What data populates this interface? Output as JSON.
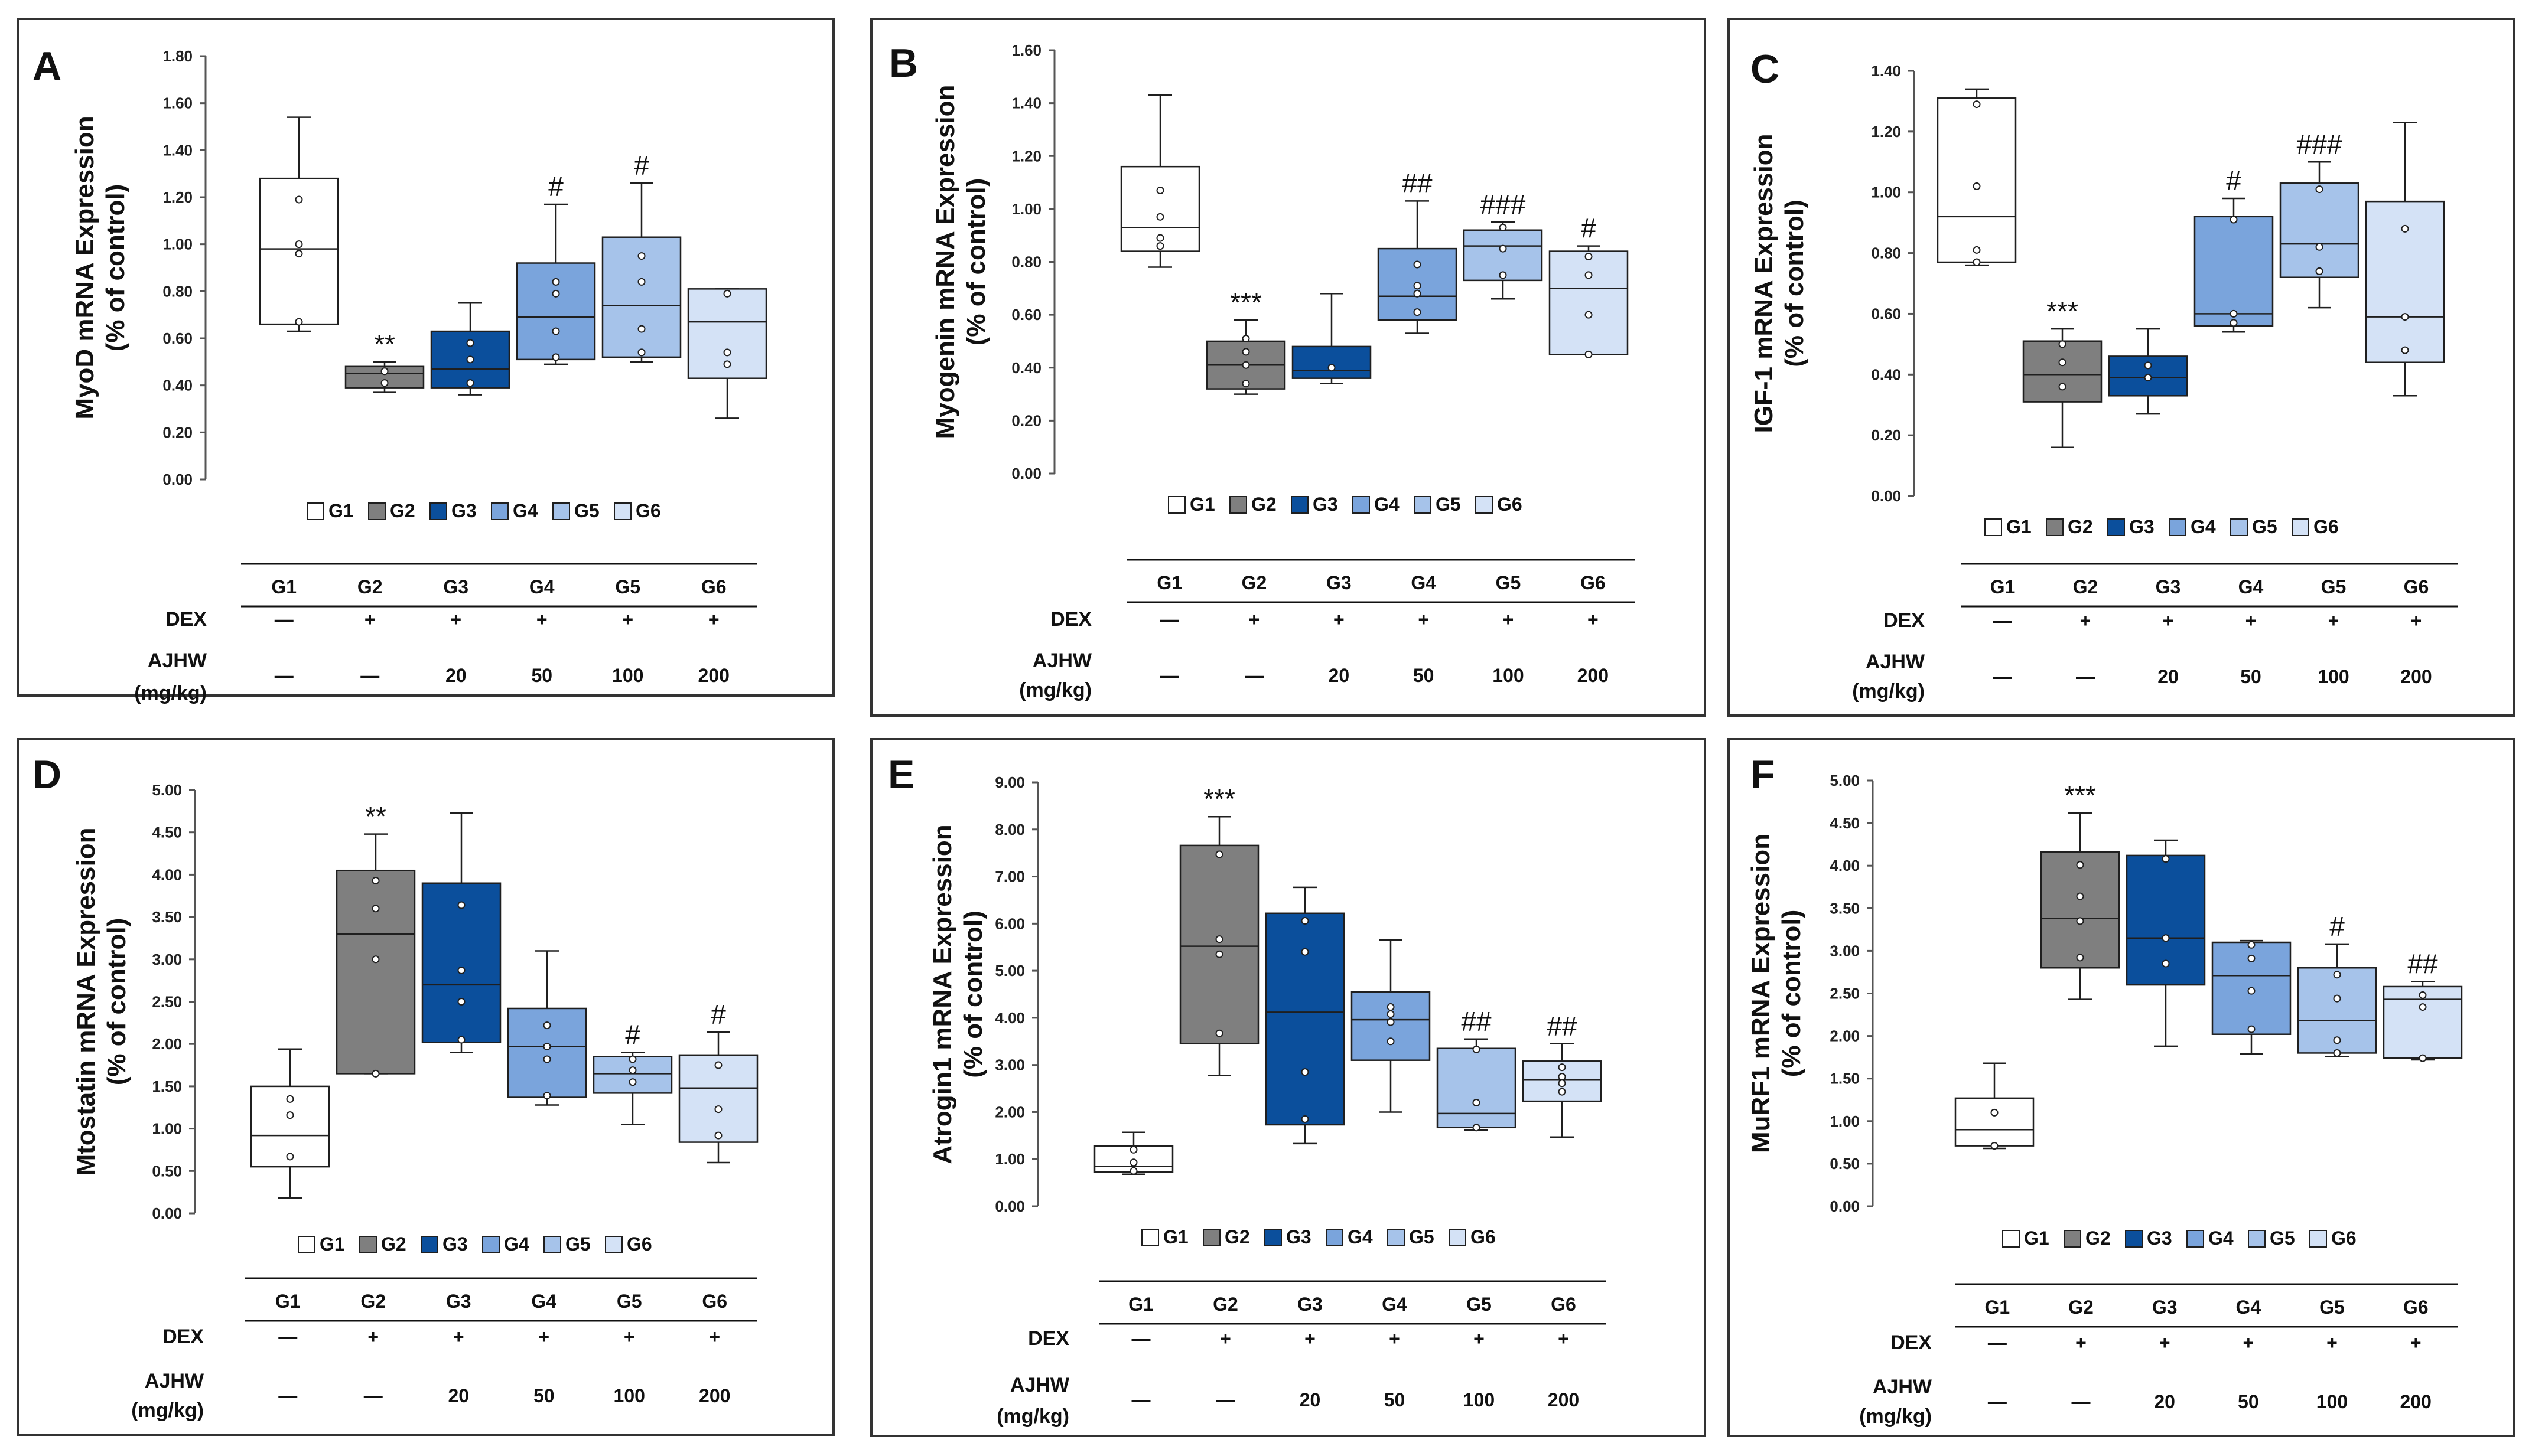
{
  "colors": {
    "G1": "#ffffff",
    "G2": "#7f7f7f",
    "G3": "#0b4f9c",
    "G4": "#7aa4dc",
    "G5": "#a6c3ea",
    "G6": "#d4e2f6",
    "stroke": "#1f1f1f"
  },
  "table": {
    "columns": [
      "G1",
      "G2",
      "G3",
      "G4",
      "G5",
      "G6"
    ],
    "dex_label": "DEX",
    "dex_values": [
      "—",
      "+",
      "+",
      "+",
      "+",
      "+"
    ],
    "ajhw_label_1": "AJHW",
    "ajhw_label_2": "(mg/kg)",
    "ajhw_values": [
      "—",
      "—",
      "20",
      "50",
      "100",
      "200"
    ]
  },
  "chart_data": [
    {
      "type": "box",
      "panel_label": "A",
      "ylabel_1": "MyoD mRNA Expression",
      "ylabel_2": "(% of control)",
      "ylim": [
        0,
        1.8
      ],
      "yticks": [
        "0.00",
        "0.20",
        "0.40",
        "0.60",
        "0.80",
        "1.00",
        "1.20",
        "1.40",
        "1.60",
        "1.80"
      ],
      "legend": [
        "G1",
        "G2",
        "G3",
        "G4",
        "G5",
        "G6"
      ],
      "groups": [
        {
          "name": "G1",
          "min": 0.63,
          "q1": 0.66,
          "median": 0.98,
          "q3": 1.28,
          "max": 1.54,
          "points": [
            0.67,
            0.96,
            1.0,
            1.19
          ],
          "sig": ""
        },
        {
          "name": "G2",
          "min": 0.37,
          "q1": 0.39,
          "median": 0.45,
          "q3": 0.48,
          "max": 0.5,
          "points": [
            0.41,
            0.46
          ],
          "sig": "**"
        },
        {
          "name": "G3",
          "min": 0.36,
          "q1": 0.39,
          "median": 0.47,
          "q3": 0.63,
          "max": 0.75,
          "points": [
            0.41,
            0.51,
            0.58
          ],
          "sig": ""
        },
        {
          "name": "G4",
          "min": 0.49,
          "q1": 0.51,
          "median": 0.69,
          "q3": 0.92,
          "max": 1.17,
          "points": [
            0.52,
            0.63,
            0.79,
            0.84
          ],
          "sig": "#"
        },
        {
          "name": "G5",
          "min": 0.5,
          "q1": 0.52,
          "median": 0.74,
          "q3": 1.03,
          "max": 1.26,
          "points": [
            0.54,
            0.64,
            0.84,
            0.95
          ],
          "sig": "#"
        },
        {
          "name": "G6",
          "min": 0.26,
          "q1": 0.43,
          "median": 0.67,
          "q3": 0.81,
          "max": 0.81,
          "points": [
            0.49,
            0.54,
            0.79
          ],
          "sig": ""
        }
      ]
    },
    {
      "type": "box",
      "panel_label": "B",
      "ylabel_1": "Myogenin mRNA Expression",
      "ylabel_2": "(% of control)",
      "ylim": [
        0,
        1.6
      ],
      "yticks": [
        "0.00",
        "0.20",
        "0.40",
        "0.60",
        "0.80",
        "1.00",
        "1.20",
        "1.40",
        "1.60"
      ],
      "legend": [
        "G1",
        "G2",
        "G3",
        "G4",
        "G5",
        "G6"
      ],
      "groups": [
        {
          "name": "G1",
          "min": 0.78,
          "q1": 0.84,
          "median": 0.93,
          "q3": 1.16,
          "max": 1.43,
          "points": [
            0.86,
            0.89,
            0.97,
            1.07
          ],
          "sig": ""
        },
        {
          "name": "G2",
          "min": 0.3,
          "q1": 0.32,
          "median": 0.41,
          "q3": 0.5,
          "max": 0.58,
          "points": [
            0.34,
            0.41,
            0.46,
            0.51
          ],
          "sig": "***"
        },
        {
          "name": "G3",
          "min": 0.34,
          "q1": 0.36,
          "median": 0.39,
          "q3": 0.48,
          "max": 0.68,
          "points": [
            0.4
          ],
          "sig": ""
        },
        {
          "name": "G4",
          "min": 0.53,
          "q1": 0.58,
          "median": 0.67,
          "q3": 0.85,
          "max": 1.03,
          "points": [
            0.61,
            0.68,
            0.71,
            0.79
          ],
          "sig": "##"
        },
        {
          "name": "G5",
          "min": 0.66,
          "q1": 0.73,
          "median": 0.86,
          "q3": 0.92,
          "max": 0.95,
          "points": [
            0.75,
            0.85,
            0.93
          ],
          "sig": "###"
        },
        {
          "name": "G6",
          "min": 0.45,
          "q1": 0.45,
          "median": 0.7,
          "q3": 0.84,
          "max": 0.86,
          "points": [
            0.45,
            0.6,
            0.75,
            0.82
          ],
          "sig": "#"
        }
      ]
    },
    {
      "type": "box",
      "panel_label": "C",
      "ylabel_1": "IGF-1 mRNA Expression",
      "ylabel_2": "(% of control)",
      "ylim": [
        0,
        1.4
      ],
      "yticks": [
        "0.00",
        "0.20",
        "0.40",
        "0.60",
        "0.80",
        "1.00",
        "1.20",
        "1.40"
      ],
      "legend": [
        "G1",
        "G2",
        "G3",
        "G4",
        "G5",
        "G6"
      ],
      "groups": [
        {
          "name": "G1",
          "min": 0.76,
          "q1": 0.77,
          "median": 0.92,
          "q3": 1.31,
          "max": 1.34,
          "points": [
            0.77,
            0.81,
            1.02,
            1.29
          ],
          "sig": ""
        },
        {
          "name": "G2",
          "min": 0.16,
          "q1": 0.31,
          "median": 0.4,
          "q3": 0.51,
          "max": 0.55,
          "points": [
            0.36,
            0.44,
            0.5
          ],
          "sig": "***"
        },
        {
          "name": "G3",
          "min": 0.27,
          "q1": 0.33,
          "median": 0.39,
          "q3": 0.46,
          "max": 0.55,
          "points": [
            0.39,
            0.43
          ],
          "sig": ""
        },
        {
          "name": "G4",
          "min": 0.54,
          "q1": 0.56,
          "median": 0.6,
          "q3": 0.92,
          "max": 0.98,
          "points": [
            0.57,
            0.6,
            0.91
          ],
          "sig": "#"
        },
        {
          "name": "G5",
          "min": 0.62,
          "q1": 0.72,
          "median": 0.83,
          "q3": 1.03,
          "max": 1.1,
          "points": [
            0.74,
            0.82,
            1.01
          ],
          "sig": "###"
        },
        {
          "name": "G6",
          "min": 0.33,
          "q1": 0.44,
          "median": 0.59,
          "q3": 0.97,
          "max": 1.23,
          "points": [
            0.48,
            0.59,
            0.88
          ],
          "sig": ""
        }
      ]
    },
    {
      "type": "box",
      "panel_label": "D",
      "ylabel_1": "Mtostatin mRNA Expression",
      "ylabel_2": "(% of control)",
      "ylim": [
        0,
        5.0
      ],
      "yticks": [
        "0.00",
        "0.50",
        "1.00",
        "1.50",
        "2.00",
        "2.50",
        "3.00",
        "3.50",
        "4.00",
        "4.50",
        "5.00"
      ],
      "legend": [
        "G1",
        "G2",
        "G3",
        "G4",
        "G5",
        "G6"
      ],
      "groups": [
        {
          "name": "G1",
          "min": 0.18,
          "q1": 0.55,
          "median": 0.92,
          "q3": 1.5,
          "max": 1.94,
          "points": [
            0.67,
            1.16,
            1.35
          ],
          "sig": ""
        },
        {
          "name": "G2",
          "min": 1.65,
          "q1": 1.65,
          "median": 3.3,
          "q3": 4.05,
          "max": 4.48,
          "points": [
            1.65,
            3.0,
            3.6,
            3.93
          ],
          "sig": "**"
        },
        {
          "name": "G3",
          "min": 1.9,
          "q1": 2.02,
          "median": 2.7,
          "q3": 3.9,
          "max": 4.73,
          "points": [
            2.05,
            2.5,
            2.87,
            3.64
          ],
          "sig": ""
        },
        {
          "name": "G4",
          "min": 1.28,
          "q1": 1.37,
          "median": 1.97,
          "q3": 2.42,
          "max": 3.1,
          "points": [
            1.39,
            1.82,
            1.97,
            2.22
          ],
          "sig": ""
        },
        {
          "name": "G5",
          "min": 1.05,
          "q1": 1.42,
          "median": 1.65,
          "q3": 1.85,
          "max": 1.9,
          "points": [
            1.55,
            1.69,
            1.82
          ],
          "sig": "#"
        },
        {
          "name": "G6",
          "min": 0.6,
          "q1": 0.84,
          "median": 1.48,
          "q3": 1.87,
          "max": 2.14,
          "points": [
            0.92,
            1.23,
            1.75
          ],
          "sig": "#"
        }
      ]
    },
    {
      "type": "box",
      "panel_label": "E",
      "ylabel_1": "Atrogin1 mRNA Expression",
      "ylabel_2": "(% of control)",
      "ylim": [
        0,
        9.0
      ],
      "yticks": [
        "0.00",
        "1.00",
        "2.00",
        "3.00",
        "4.00",
        "5.00",
        "6.00",
        "7.00",
        "8.00",
        "9.00"
      ],
      "legend": [
        "G1",
        "G2",
        "G3",
        "G4",
        "G5",
        "G6"
      ],
      "groups": [
        {
          "name": "G1",
          "min": 0.68,
          "q1": 0.73,
          "median": 0.85,
          "q3": 1.28,
          "max": 1.57,
          "points": [
            0.75,
            0.93,
            1.2
          ],
          "sig": ""
        },
        {
          "name": "G2",
          "min": 2.78,
          "q1": 3.45,
          "median": 5.52,
          "q3": 7.66,
          "max": 8.27,
          "points": [
            3.67,
            5.35,
            5.67,
            7.47
          ],
          "sig": "***"
        },
        {
          "name": "G3",
          "min": 1.33,
          "q1": 1.73,
          "median": 4.12,
          "q3": 6.22,
          "max": 6.77,
          "points": [
            1.85,
            2.85,
            5.4,
            6.06
          ],
          "sig": ""
        },
        {
          "name": "G4",
          "min": 2.0,
          "q1": 3.1,
          "median": 3.96,
          "q3": 4.55,
          "max": 5.65,
          "points": [
            3.5,
            3.91,
            4.08,
            4.23
          ],
          "sig": ""
        },
        {
          "name": "G5",
          "min": 1.62,
          "q1": 1.67,
          "median": 1.97,
          "q3": 3.35,
          "max": 3.55,
          "points": [
            1.67,
            2.2,
            3.33
          ],
          "sig": "##"
        },
        {
          "name": "G6",
          "min": 1.47,
          "q1": 2.23,
          "median": 2.68,
          "q3": 3.08,
          "max": 3.45,
          "points": [
            2.43,
            2.61,
            2.75,
            2.95
          ],
          "sig": "##"
        }
      ]
    },
    {
      "type": "box",
      "panel_label": "F",
      "ylabel_1": "MuRF1 mRNA Expression",
      "ylabel_2": "(% of control)",
      "ylim": [
        0,
        5.0
      ],
      "yticks": [
        "0.00",
        "0.50",
        "1.00",
        "1.50",
        "2.00",
        "2.50",
        "3.00",
        "3.50",
        "4.00",
        "4.50",
        "5.00"
      ],
      "legend": [
        "G1",
        "G2",
        "G3",
        "G4",
        "G5",
        "G6"
      ],
      "groups": [
        {
          "name": "G1",
          "min": 0.68,
          "q1": 0.71,
          "median": 0.9,
          "q3": 1.27,
          "max": 1.68,
          "points": [
            0.71,
            1.1
          ],
          "sig": ""
        },
        {
          "name": "G2",
          "min": 2.43,
          "q1": 2.8,
          "median": 3.38,
          "q3": 4.16,
          "max": 4.62,
          "points": [
            2.92,
            3.35,
            3.64,
            4.01
          ],
          "sig": "***"
        },
        {
          "name": "G3",
          "min": 1.88,
          "q1": 2.6,
          "median": 3.15,
          "q3": 4.12,
          "max": 4.3,
          "points": [
            2.85,
            3.15,
            4.08
          ],
          "sig": ""
        },
        {
          "name": "G4",
          "min": 1.79,
          "q1": 2.02,
          "median": 2.71,
          "q3": 3.1,
          "max": 3.12,
          "points": [
            2.08,
            2.53,
            2.91,
            3.07
          ],
          "sig": ""
        },
        {
          "name": "G5",
          "min": 1.76,
          "q1": 1.8,
          "median": 2.18,
          "q3": 2.8,
          "max": 3.08,
          "points": [
            1.8,
            1.95,
            2.44,
            2.72
          ],
          "sig": "#"
        },
        {
          "name": "G6",
          "min": 1.72,
          "q1": 1.74,
          "median": 2.43,
          "q3": 2.58,
          "max": 2.64,
          "points": [
            1.74,
            2.34,
            2.48
          ],
          "sig": "##"
        }
      ]
    }
  ]
}
